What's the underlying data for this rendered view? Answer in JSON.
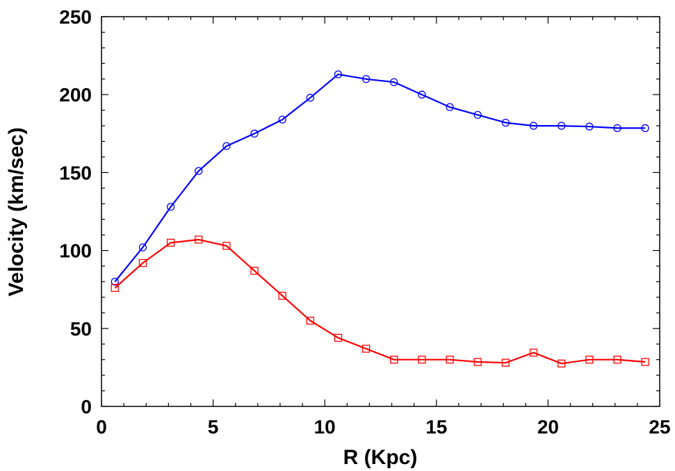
{
  "chart_data": {
    "type": "line",
    "title": "",
    "xlabel": "R (Kpc)",
    "ylabel": "Velocity (km/sec)",
    "xlim": [
      0,
      25
    ],
    "ylim": [
      0,
      250
    ],
    "xticks": [
      0,
      5,
      10,
      15,
      20,
      25
    ],
    "yticks": [
      0,
      50,
      100,
      150,
      200,
      250
    ],
    "grid": false,
    "legend": "none",
    "series": [
      {
        "color": "#0000ff",
        "marker": "circle",
        "x": [
          0.6,
          1.85,
          3.1,
          4.35,
          5.6,
          6.85,
          8.1,
          9.35,
          10.6,
          11.85,
          13.1,
          14.35,
          15.6,
          16.85,
          18.1,
          19.35,
          20.6,
          21.85,
          23.1,
          24.35
        ],
        "y": [
          80,
          102,
          128,
          151,
          167,
          175,
          184,
          198,
          213,
          210,
          208,
          200,
          192,
          187,
          182,
          180,
          180,
          179.5,
          178.5,
          178.5
        ]
      },
      {
        "color": "#ff0000",
        "marker": "square",
        "x": [
          0.6,
          1.85,
          3.1,
          4.35,
          5.6,
          6.85,
          8.1,
          9.35,
          10.6,
          11.85,
          13.1,
          14.35,
          15.6,
          16.85,
          18.1,
          19.35,
          20.6,
          21.85,
          23.1,
          24.35
        ],
        "y": [
          76,
          92,
          105,
          107,
          103,
          87,
          71,
          55,
          44,
          37,
          30,
          30,
          30,
          28.5,
          28,
          34.5,
          27.5,
          30,
          30,
          28.5
        ]
      }
    ]
  }
}
